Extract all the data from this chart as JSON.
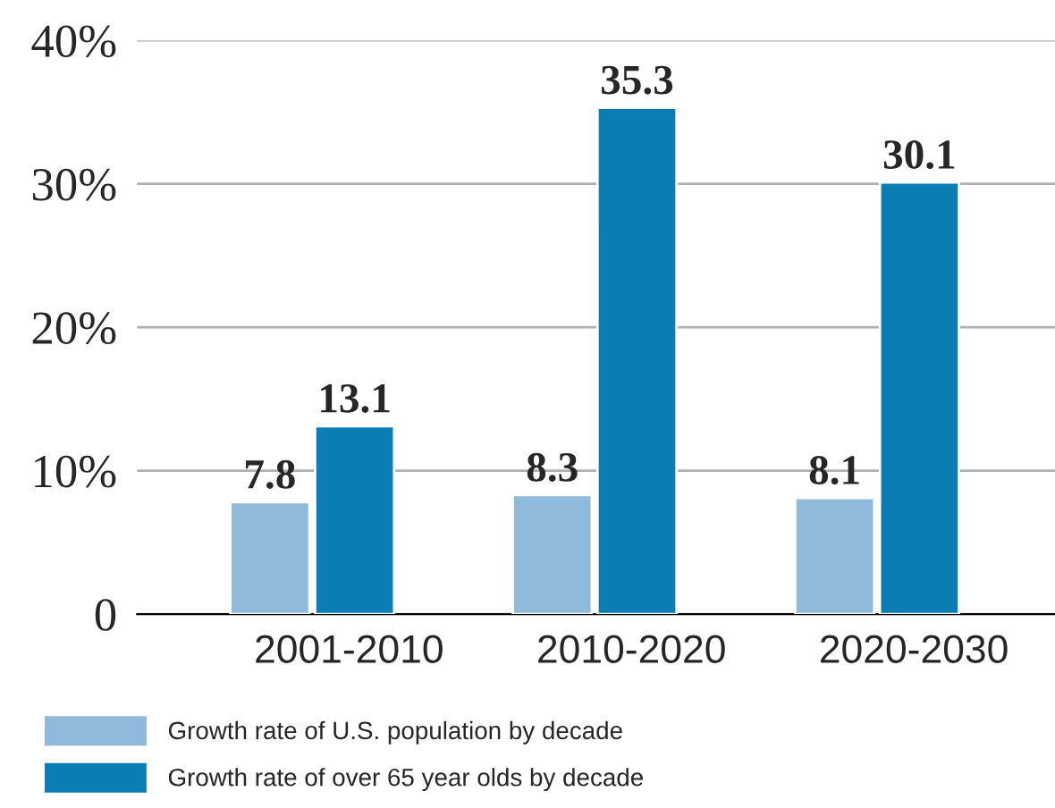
{
  "chart_data": {
    "type": "bar",
    "categories": [
      "2001-2010",
      "2010-2020",
      "2020-2030"
    ],
    "series": [
      {
        "name": "Growth rate of U.S. population by decade",
        "color": "#8fbadb",
        "values": [
          7.8,
          8.3,
          8.1
        ]
      },
      {
        "name": "Growth rate of over 65 year olds by decade",
        "color": "#0a7db5",
        "values": [
          13.1,
          35.3,
          30.1
        ]
      }
    ],
    "ylim": [
      0,
      40
    ],
    "yticks": [
      0,
      {
        "value": 10,
        "label": "10%"
      },
      {
        "value": 20,
        "label": "20%"
      },
      {
        "value": 30,
        "label": "30%"
      },
      {
        "value": 40,
        "label": "40%"
      }
    ],
    "grid": "y",
    "legend": "bottom left",
    "data_labels": true
  }
}
